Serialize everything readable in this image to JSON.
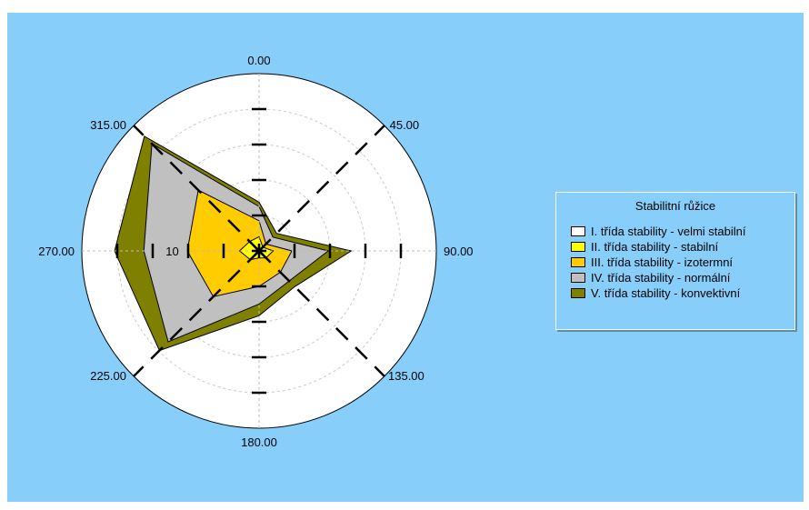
{
  "chart_data": {
    "type": "radar",
    "title": "",
    "direction_labels": [
      "0.00",
      "45.00",
      "90.00",
      "135.00",
      "180.00",
      "225.00",
      "270.00",
      "315.00"
    ],
    "angles": [
      0,
      45,
      90,
      135,
      180,
      225,
      270,
      315
    ],
    "ring_label": "10",
    "r_max": 20,
    "rings": [
      4,
      8,
      12,
      16
    ],
    "legend": {
      "title": "Stabilitní růžice",
      "items": [
        {
          "label": "I. třída stability - velmi stabilní",
          "color": "#ffffff"
        },
        {
          "label": "II. třída stability - stabilní",
          "color": "#ffff00"
        },
        {
          "label": "III. třída stability - izotermní",
          "color": "#ffcc00"
        },
        {
          "label": "IV. třída stability - normální",
          "color": "#c0c0c0"
        },
        {
          "label": "V. třída stability - konvektivní",
          "color": "#808000"
        }
      ]
    },
    "series": [
      {
        "name": "V. třída stability - konvektivní",
        "color": "#808000",
        "values": [
          5.5,
          2.8,
          10.4,
          5.7,
          7.3,
          15.9,
          16.3,
          18.3
        ]
      },
      {
        "name": "IV. třída stability - normální",
        "color": "#c0c0c0",
        "values": [
          5.0,
          2.2,
          7.8,
          4.8,
          6.0,
          14.5,
          13.0,
          17.1
        ]
      },
      {
        "name": "III. třída stability - izotermní",
        "color": "#ffcc00",
        "values": [
          3.4,
          1.1,
          3.7,
          3.4,
          4.0,
          7.3,
          8.1,
          9.7
        ]
      },
      {
        "name": "II. třída stability - stabilní",
        "color": "#ffff00",
        "values": [
          1.6,
          0.6,
          1.6,
          1.1,
          0.8,
          1.4,
          2.2,
          1.5
        ]
      },
      {
        "name": "I. třída stability - velmi stabilní",
        "color": "#ffffff",
        "values": [
          0.3,
          0.2,
          0.4,
          0.2,
          0.2,
          0.3,
          0.4,
          0.3
        ]
      }
    ]
  }
}
